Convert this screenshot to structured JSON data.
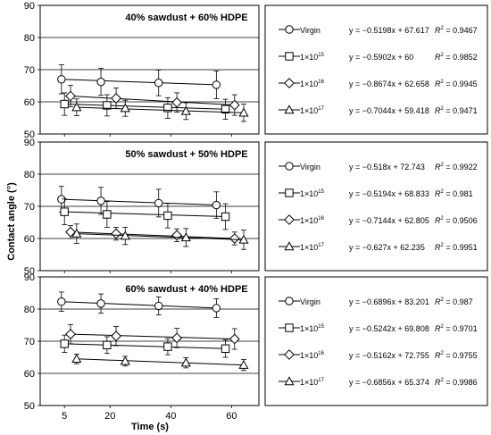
{
  "figure": {
    "ylabel": "Contact angle (°)",
    "xlabel": "Time (s)"
  },
  "chart_data": [
    {
      "type": "scatter",
      "title": "40% sawdust + 60% HDPE",
      "xlabel": "Time (s)",
      "ylabel": "Contact angle (°)",
      "xticks": [
        5,
        20,
        40,
        60
      ],
      "yticks": [
        50,
        60,
        70,
        80,
        90
      ],
      "ylim": [
        50,
        90
      ],
      "grid": "horizontal",
      "legend_position": "right",
      "series": [
        {
          "name": "Virgin",
          "name_base": "Virgin",
          "name_exp": "",
          "marker": "circle",
          "x": [
            4,
            17,
            36,
            55
          ],
          "y": [
            67.0,
            66.2,
            65.9,
            65.3
          ],
          "err": [
            4.5,
            4.2,
            4.0,
            4.3
          ],
          "equation": "y = −0.5198x + 67.617",
          "r2": "R² = 0.9467",
          "r2_value": "0.9467",
          "fit": [
            -0.5198,
            67.617
          ]
        },
        {
          "name": "1×10¹⁵",
          "name_base": "1×10",
          "name_exp": "15",
          "marker": "square",
          "x": [
            5,
            19,
            39,
            58
          ],
          "y": [
            59.3,
            58.9,
            58.1,
            57.7
          ],
          "err": [
            3.5,
            3.3,
            3.2,
            3.1
          ],
          "equation": "y = −0.5902x + 60",
          "r2": "R² = 0.9852",
          "r2_value": "0.9852",
          "fit": [
            -0.5902,
            60
          ]
        },
        {
          "name": "1×10¹⁶",
          "name_base": "1×10",
          "name_exp": "16",
          "marker": "diamond",
          "x": [
            7,
            22,
            42,
            61
          ],
          "y": [
            61.8,
            61.1,
            59.8,
            59.0
          ],
          "err": [
            3.3,
            3.2,
            3.0,
            3.2
          ],
          "equation": "y = −0.8674x + 62.658",
          "r2": "R² = 0.9945",
          "r2_value": "0.9945",
          "fit": [
            -0.8674,
            62.658
          ]
        },
        {
          "name": "1×10¹⁷",
          "name_base": "1×10",
          "name_exp": "17",
          "marker": "triangle",
          "x": [
            9,
            25,
            45,
            64
          ],
          "y": [
            58.3,
            58.0,
            57.1,
            56.6
          ],
          "err": [
            2.6,
            2.5,
            2.6,
            2.7
          ],
          "equation": "y = −0.7044x + 59.418",
          "r2": "R² = 0.9471",
          "r2_value": "0.9471",
          "fit": [
            -0.7044,
            59.418
          ]
        }
      ]
    },
    {
      "type": "scatter",
      "title": "50% sawdust + 50% HDPE",
      "xlabel": "Time (s)",
      "ylabel": "Contact angle (°)",
      "xticks": [
        5,
        20,
        40,
        60
      ],
      "yticks": [
        50,
        60,
        70,
        80,
        90
      ],
      "ylim": [
        50,
        90
      ],
      "grid": "horizontal",
      "legend_position": "right",
      "series": [
        {
          "name": "Virgin",
          "name_base": "Virgin",
          "name_exp": "",
          "marker": "circle",
          "x": [
            4,
            17,
            36,
            55
          ],
          "y": [
            72.2,
            71.7,
            71.0,
            70.4
          ],
          "err": [
            4.0,
            4.2,
            4.3,
            4.1
          ],
          "equation": "y = −0.518x + 72.743",
          "r2": "R² = 0.9922",
          "r2_value": "0.9922",
          "fit": [
            -0.518,
            72.743
          ]
        },
        {
          "name": "1×10¹⁵",
          "name_base": "1×10",
          "name_exp": "15",
          "marker": "square",
          "x": [
            5,
            19,
            39,
            58
          ],
          "y": [
            68.3,
            67.5,
            67.1,
            66.8
          ],
          "err": [
            4.0,
            4.0,
            3.8,
            4.0
          ],
          "equation": "y = −0.5194x + 68.833",
          "r2": "R² = 0.981",
          "r2_value": "0.981",
          "fit": [
            -0.5194,
            68.833
          ]
        },
        {
          "name": "1×10¹⁶",
          "name_base": "1×10",
          "name_exp": "16",
          "marker": "diamond",
          "x": [
            7,
            22,
            42,
            61
          ],
          "y": [
            62.0,
            61.5,
            61.0,
            60.0
          ],
          "err": [
            2.0,
            2.0,
            2.0,
            2.0
          ],
          "equation": "y = −0.7144x + 62.805",
          "r2": "R² = 0.9506",
          "r2_value": "0.9506",
          "fit": [
            -0.7144,
            62.805
          ]
        },
        {
          "name": "1×10¹⁷",
          "name_base": "1×10",
          "name_exp": "17",
          "marker": "triangle",
          "x": [
            9,
            25,
            45,
            64
          ],
          "y": [
            61.5,
            60.8,
            60.3,
            59.6
          ],
          "err": [
            3.0,
            2.7,
            2.8,
            3.0
          ],
          "equation": "y = −0.627x + 62.235",
          "r2": "R² = 0.9951",
          "r2_value": "0.9951",
          "fit": [
            -0.627,
            62.235
          ]
        }
      ]
    },
    {
      "type": "scatter",
      "title": "60% sawdust + 40% HDPE",
      "xlabel": "Time (s)",
      "ylabel": "Contact angle (°)",
      "xticks": [
        5,
        20,
        40,
        60
      ],
      "yticks": [
        50,
        60,
        70,
        80,
        90
      ],
      "ylim": [
        50,
        90
      ],
      "grid": "horizontal",
      "legend_position": "right",
      "series": [
        {
          "name": "Virgin",
          "name_base": "Virgin",
          "name_exp": "",
          "marker": "circle",
          "x": [
            4,
            17,
            36,
            55
          ],
          "y": [
            82.3,
            81.7,
            81.0,
            80.3
          ],
          "err": [
            3.0,
            3.0,
            2.8,
            2.9
          ],
          "equation": "y = −0.6896x + 83.201",
          "r2": "R² = 0.987",
          "r2_value": "0.987",
          "fit": [
            -0.6896,
            83.201
          ]
        },
        {
          "name": "1×10¹⁵",
          "name_base": "1×10",
          "name_exp": "15",
          "marker": "square",
          "x": [
            5,
            19,
            39,
            58
          ],
          "y": [
            69.2,
            68.8,
            68.3,
            67.7
          ],
          "err": [
            2.7,
            2.6,
            2.5,
            2.7
          ],
          "equation": "y = −0.5242x + 69.808",
          "r2": "R² = 0.9701",
          "r2_value": "0.9701",
          "fit": [
            -0.5242,
            69.808
          ]
        },
        {
          "name": "1×10¹⁶",
          "name_base": "1×10",
          "name_exp": "16",
          "marker": "diamond",
          "x": [
            7,
            22,
            42,
            61
          ],
          "y": [
            72.2,
            71.6,
            71.0,
            70.7
          ],
          "err": [
            3.0,
            3.0,
            3.0,
            3.2
          ],
          "equation": "y = −0.5162x + 72.755",
          "r2": "R² = 0.9755",
          "r2_value": "0.9755",
          "fit": [
            -0.5162,
            72.755
          ]
        },
        {
          "name": "1×10¹⁷",
          "name_base": "1×10",
          "name_exp": "17",
          "marker": "triangle",
          "x": [
            9,
            25,
            45,
            64
          ],
          "y": [
            64.5,
            63.8,
            63.3,
            62.6
          ],
          "err": [
            1.5,
            1.5,
            1.6,
            1.7
          ],
          "equation": "y = −0.6856x + 65.374",
          "r2": "R² = 0.9986",
          "r2_value": "0.9986",
          "fit": [
            -0.6856,
            65.374
          ]
        }
      ]
    }
  ]
}
